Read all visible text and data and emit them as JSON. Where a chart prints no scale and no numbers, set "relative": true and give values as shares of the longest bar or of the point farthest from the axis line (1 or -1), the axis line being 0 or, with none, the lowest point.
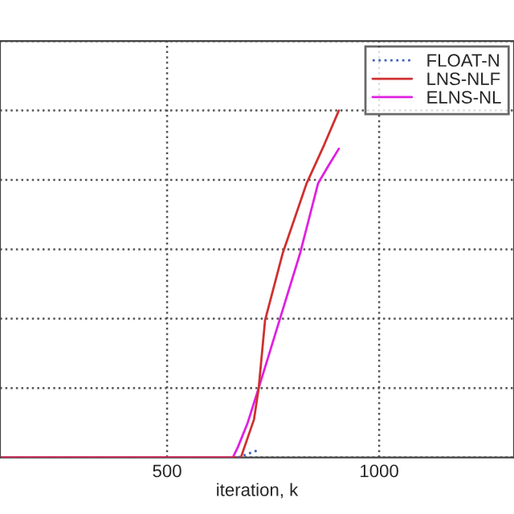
{
  "chart_data": {
    "type": "line",
    "relative": true,
    "xlabel": "iteration, k",
    "xlim": [
      106,
      1318
    ],
    "xticks": [
      500,
      1000
    ],
    "grid": true,
    "legend": "top right",
    "series": [
      {
        "name": "FLOAT-N",
        "color": "#4060c0",
        "line_style": "dotted",
        "x": [
          667,
          690,
          712
        ],
        "values": [
          0,
          0.01,
          0.02
        ]
      },
      {
        "name": "LNS-NLF",
        "color": "#d03030",
        "line_style": "solid",
        "x": [
          110,
          674,
          705,
          716,
          731,
          773,
          829,
          870,
          905
        ],
        "values": [
          0,
          0,
          0.11,
          0.2,
          0.395,
          0.59,
          0.79,
          0.9,
          1.0
        ]
      },
      {
        "name": "ELNS-NL",
        "color": "#e020e0",
        "line_style": "solid",
        "x": [
          110,
          655,
          667,
          690,
          716,
          765,
          814,
          856,
          880,
          905
        ],
        "values": [
          0,
          0,
          0.03,
          0.1,
          0.2,
          0.395,
          0.59,
          0.79,
          0.84,
          0.89
        ]
      }
    ]
  }
}
